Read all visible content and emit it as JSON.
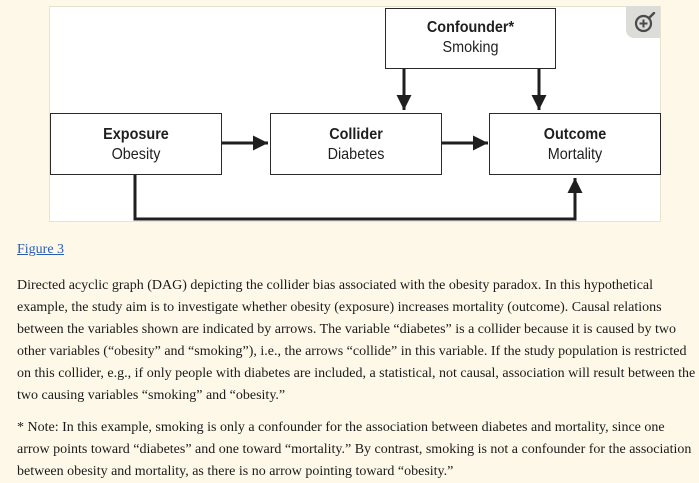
{
  "figure": {
    "label": "Figure 3",
    "nodes": {
      "confounder": {
        "title": "Confounder*",
        "sub": "Smoking"
      },
      "exposure": {
        "title": "Exposure",
        "sub": "Obesity"
      },
      "collider": {
        "title": "Collider",
        "sub": "Diabetes"
      },
      "outcome": {
        "title": "Outcome",
        "sub": "Mortality"
      }
    },
    "zoom_icon": "zoom-in-icon"
  },
  "caption": {
    "text": "Directed acyclic graph (DAG) depicting the collider bias associated with the obesity paradox. In this hypothetical example, the study aim is to investigate whether obesity (exposure) increases mortality (outcome). Causal relations between the variables shown are indicated by arrows. The variable “diabetes” is a collider because it is caused by two other variables (“obesity” and “smoking”), i.e., the arrows “collide” in this variable. If the study population is restricted on this collider, e.g., if only people with diabetes are included, a statistical, not causal, association will result between the two causing variables “smoking” and “obesity.”",
    "note": "* Note: In this example, smoking is only a confounder for the association between diabetes and mortality, since one arrow points toward “diabetes” and one toward “mortality.” By contrast, smoking is not a confounder for the association between obesity and mortality, as there is no arrow pointing toward “obesity.”"
  }
}
